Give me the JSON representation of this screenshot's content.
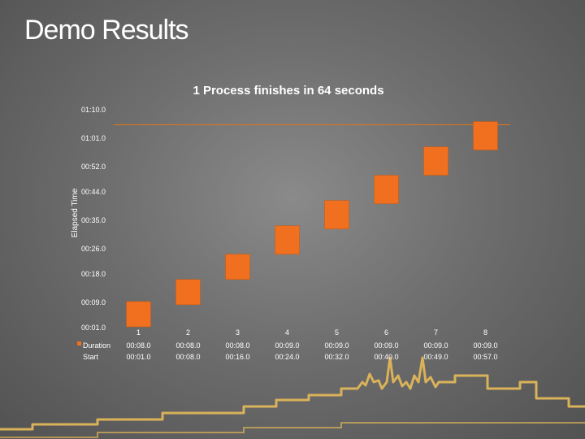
{
  "slide": {
    "title": "Demo Results"
  },
  "colors": {
    "accent": "#f07020",
    "line": "#d8741e",
    "text": "#ffffff",
    "skyline": "#d9b25a"
  },
  "chart_data": {
    "type": "bar",
    "subtype": "stacked-gantt",
    "title": "1 Process finishes in 64 seconds",
    "ylabel": "Elapsed Time",
    "xlabel": "",
    "ylim": [
      1,
      70
    ],
    "yticks": [
      "01:10.0",
      "01:01.0",
      "00:52.0",
      "00:44.0",
      "00:35.0",
      "00:26.0",
      "00:18.0",
      "00:09.0",
      "00:01.0"
    ],
    "ytick_values": [
      70,
      61,
      52,
      44,
      35,
      26,
      18,
      9,
      1
    ],
    "categories": [
      "1",
      "2",
      "3",
      "4",
      "5",
      "6",
      "7",
      "8"
    ],
    "reference_line": 65,
    "series": [
      {
        "name": "Duration",
        "values": [
          8,
          8,
          8,
          9,
          9,
          9,
          9,
          9
        ],
        "labels": [
          "00:08.0",
          "00:08.0",
          "00:08.0",
          "00:09.0",
          "00:09.0",
          "00:09.0",
          "00:09.0",
          "00:09.0"
        ],
        "visible": true
      },
      {
        "name": "Start",
        "values": [
          1,
          8,
          16,
          24,
          32,
          40,
          49,
          57
        ],
        "labels": [
          "00:01.0",
          "00:08.0",
          "00:16.0",
          "00:24.0",
          "00:32.0",
          "00:40.0",
          "00:49.0",
          "00:57.0"
        ],
        "visible": false
      }
    ],
    "grid": false,
    "legend": "data-table"
  }
}
